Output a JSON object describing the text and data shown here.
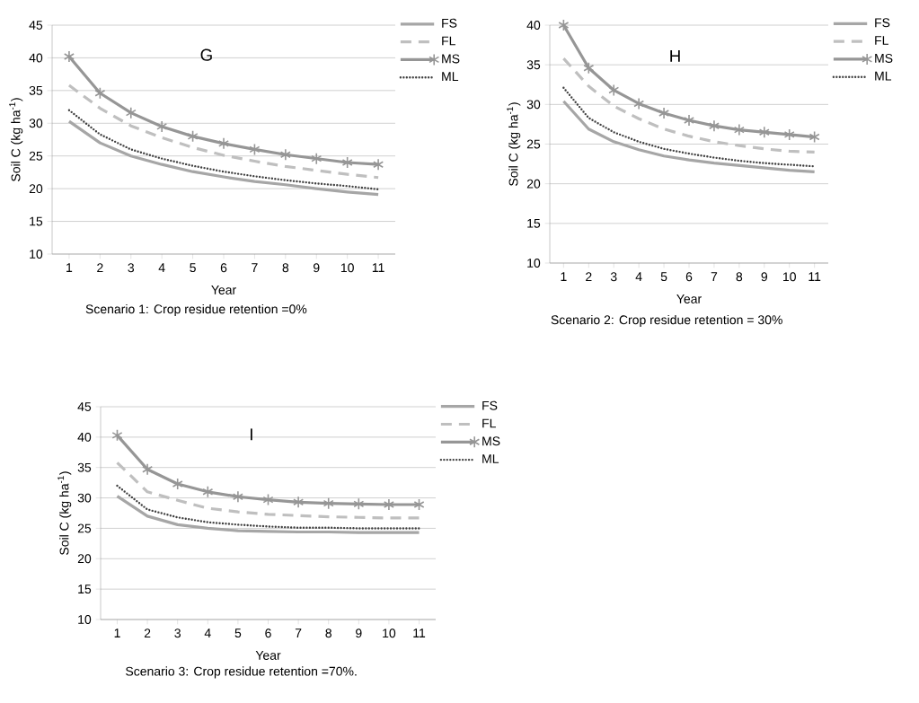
{
  "chart_data": [
    {
      "type": "line",
      "xlabel": "Year",
      "ylabel": "Soil C (kg ha$^{-1}$)",
      "categories": [
        "1",
        "2",
        "3",
        "4",
        "5",
        "6",
        "7",
        "8",
        "9",
        "10",
        "11"
      ],
      "ylim": [
        10,
        45
      ],
      "yticks": [
        10,
        15,
        20,
        25,
        30,
        35,
        40,
        45
      ],
      "grid": "y",
      "legend": "top right",
      "annotations": [
        "G",
        "Scenario 1: Crop residue retention =0%"
      ],
      "series": [
        {
          "name": "FS",
          "color": "#a6a6a6",
          "line_style": "solid",
          "marker": "none",
          "values": [
            30.3,
            27.0,
            25.0,
            23.7,
            22.6,
            21.8,
            21.1,
            20.6,
            20.0,
            19.5,
            19.1
          ]
        },
        {
          "name": "FL",
          "color": "#bfbfbf",
          "line_style": "dashed",
          "marker": "none",
          "values": [
            35.8,
            32.3,
            29.6,
            27.8,
            26.3,
            25.1,
            24.2,
            23.4,
            22.8,
            22.2,
            21.7
          ]
        },
        {
          "name": "MS",
          "color": "#969696",
          "line_style": "solid",
          "marker": "cross",
          "values": [
            40.2,
            34.6,
            31.6,
            29.5,
            28.0,
            26.9,
            26.0,
            25.2,
            24.6,
            24.0,
            23.7
          ]
        },
        {
          "name": "ML",
          "color": "#404040",
          "line_style": "dotted",
          "marker": "none",
          "values": [
            32.0,
            28.3,
            26.0,
            24.6,
            23.5,
            22.6,
            21.9,
            21.3,
            20.8,
            20.4,
            19.9
          ]
        }
      ]
    },
    {
      "type": "line",
      "xlabel": "Year",
      "ylabel": "Soil C (kg ha$^{-1}$)",
      "categories": [
        "1",
        "2",
        "3",
        "4",
        "5",
        "6",
        "7",
        "8",
        "9",
        "10",
        "11"
      ],
      "ylim": [
        10,
        40
      ],
      "yticks": [
        10,
        15,
        20,
        25,
        30,
        35,
        40
      ],
      "grid": "y",
      "legend": "top right",
      "annotations": [
        "H",
        "Scenario 2: Crop residue retention = 30%"
      ],
      "series": [
        {
          "name": "FS",
          "color": "#a6a6a6",
          "line_style": "solid",
          "marker": "none",
          "values": [
            30.4,
            26.9,
            25.3,
            24.3,
            23.5,
            23.0,
            22.6,
            22.3,
            22.0,
            21.7,
            21.5
          ]
        },
        {
          "name": "FL",
          "color": "#bfbfbf",
          "line_style": "dashed",
          "marker": "none",
          "values": [
            35.8,
            32.3,
            29.8,
            28.2,
            26.9,
            26.0,
            25.3,
            24.8,
            24.4,
            24.1,
            24.0
          ]
        },
        {
          "name": "MS",
          "color": "#969696",
          "line_style": "solid",
          "marker": "cross",
          "values": [
            40.0,
            34.6,
            31.8,
            30.1,
            28.9,
            28.0,
            27.3,
            26.8,
            26.5,
            26.2,
            25.9
          ]
        },
        {
          "name": "ML",
          "color": "#404040",
          "line_style": "dotted",
          "marker": "none",
          "values": [
            32.1,
            28.3,
            26.5,
            25.3,
            24.4,
            23.8,
            23.3,
            22.9,
            22.6,
            22.4,
            22.2
          ]
        }
      ]
    },
    {
      "type": "line",
      "xlabel": "Year",
      "ylabel": "Soil C (kg ha$^{-1}$)",
      "categories": [
        "1",
        "2",
        "3",
        "4",
        "5",
        "6",
        "7",
        "8",
        "9",
        "10",
        "11"
      ],
      "ylim": [
        10,
        45
      ],
      "yticks": [
        10,
        15,
        20,
        25,
        30,
        35,
        40,
        45
      ],
      "grid": "y",
      "legend": "top right",
      "annotations": [
        "I",
        "Scenario 3: Crop residue retention =70%."
      ],
      "series": [
        {
          "name": "FS",
          "color": "#a6a6a6",
          "line_style": "solid",
          "marker": "none",
          "values": [
            30.3,
            27.0,
            25.6,
            25.0,
            24.6,
            24.5,
            24.4,
            24.4,
            24.3,
            24.3,
            24.3
          ]
        },
        {
          "name": "FL",
          "color": "#bfbfbf",
          "line_style": "dashed",
          "marker": "none",
          "values": [
            35.8,
            31.0,
            29.6,
            28.3,
            27.7,
            27.3,
            27.1,
            26.9,
            26.8,
            26.7,
            26.7
          ]
        },
        {
          "name": "MS",
          "color": "#969696",
          "line_style": "solid",
          "marker": "cross",
          "values": [
            40.3,
            34.7,
            32.3,
            31.0,
            30.2,
            29.7,
            29.3,
            29.1,
            29.0,
            28.9,
            28.9
          ]
        },
        {
          "name": "ML",
          "color": "#404040",
          "line_style": "dotted",
          "marker": "none",
          "values": [
            32.0,
            28.1,
            26.8,
            26.0,
            25.6,
            25.3,
            25.1,
            25.1,
            25.0,
            25.0,
            25.0
          ]
        }
      ]
    }
  ]
}
